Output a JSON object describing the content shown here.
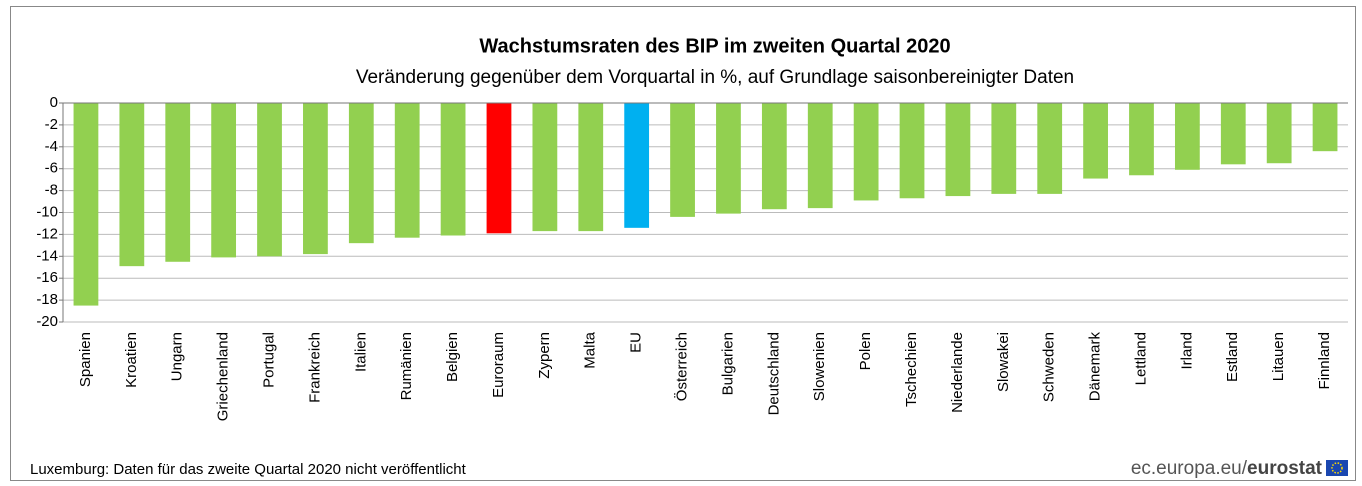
{
  "chart_data": {
    "type": "bar",
    "title": "Wachstumsraten des BIP im zweiten Quartal 2020",
    "subtitle": "Veränderung gegenüber dem Vorquartal in %, auf Grundlage saisonbereinigter Daten",
    "categories": [
      "Spanien",
      "Kroatien",
      "Ungarn",
      "Griechenland",
      "Portugal",
      "Frankreich",
      "Italien",
      "Rumänien",
      "Belgien",
      "Euroraum",
      "Zypern",
      "Malta",
      "EU",
      "Österreich",
      "Bulgarien",
      "Deutschland",
      "Slowenien",
      "Polen",
      "Tschechien",
      "Niederlande",
      "Slowakei",
      "Schweden",
      "Dänemark",
      "Lettland",
      "Irland",
      "Estland",
      "Litauen",
      "Finnland"
    ],
    "values": [
      -18.5,
      -14.9,
      -14.5,
      -14.1,
      -14.0,
      -13.8,
      -12.8,
      -12.3,
      -12.1,
      -11.9,
      -11.7,
      -11.7,
      -11.4,
      -10.4,
      -10.1,
      -9.7,
      -9.6,
      -8.9,
      -8.7,
      -8.5,
      -8.3,
      -8.3,
      -6.9,
      -6.6,
      -6.1,
      -5.6,
      -5.5,
      -4.4
    ],
    "colors": [
      "#92d050",
      "#92d050",
      "#92d050",
      "#92d050",
      "#92d050",
      "#92d050",
      "#92d050",
      "#92d050",
      "#92d050",
      "#ff0000",
      "#92d050",
      "#92d050",
      "#00b0f0",
      "#92d050",
      "#92d050",
      "#92d050",
      "#92d050",
      "#92d050",
      "#92d050",
      "#92d050",
      "#92d050",
      "#92d050",
      "#92d050",
      "#92d050",
      "#92d050",
      "#92d050",
      "#92d050",
      "#92d050"
    ],
    "ylim": [
      -20,
      0
    ],
    "yticks": [
      0,
      -2,
      -4,
      -6,
      -8,
      -10,
      -12,
      -14,
      -16,
      -18,
      -20
    ],
    "grid": true,
    "footnote": "Luxemburg:  Daten für das zweite Quartal 2020 nicht veröffentlicht",
    "source_url": "ec.europa.eu/",
    "source_brand": "eurostat"
  }
}
